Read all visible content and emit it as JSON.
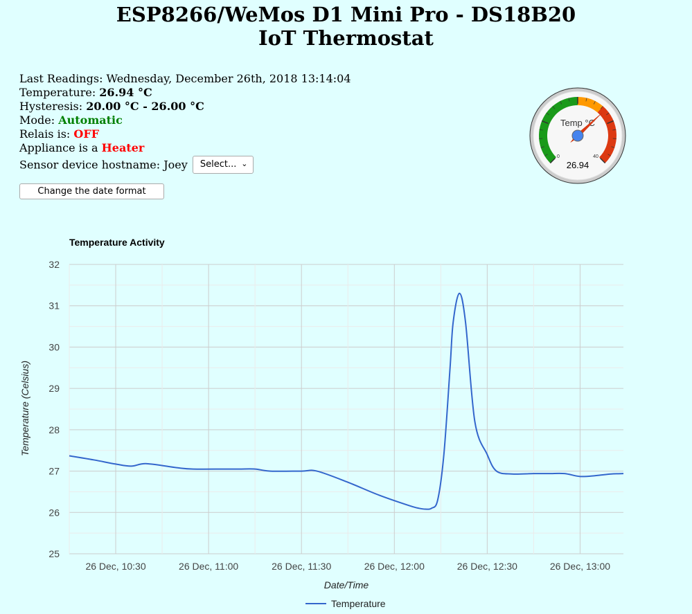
{
  "header": {
    "title_line1": "ESP8266/WeMos D1 Mini Pro - DS18B20",
    "title_line2": "IoT Thermostat"
  },
  "readings": {
    "last_label": "Last Readings: ",
    "last_value": "Wednesday, December 26th, 2018 13:14:04",
    "temp_label": "Temperature: ",
    "temp_value": "26.94 °C",
    "hyst_label": "Hysteresis: ",
    "hyst_value": "20.00 °C - 26.00 °C",
    "mode_label": "Mode: ",
    "mode_value": "Automatic",
    "relais_label": "Relais is: ",
    "relais_value": "OFF",
    "appliance_label": "Appliance is a ",
    "appliance_value": "Heater",
    "hostname_label": "Sensor device hostname: ",
    "hostname_value": "Joey",
    "select_value": "Select..."
  },
  "buttons": {
    "date_format": "Change the date format"
  },
  "gauge": {
    "label": "Temp °C",
    "value": 26.94,
    "value_text": "26.94",
    "min": 0,
    "max": 40,
    "min_label": "0",
    "max_label": "40",
    "bands": [
      {
        "from": 0,
        "to": 20,
        "color": "#1a9a1a"
      },
      {
        "from": 20,
        "to": 26,
        "color": "#ff9900"
      },
      {
        "from": 26,
        "to": 40,
        "color": "#dc3912"
      }
    ]
  },
  "chart_data": {
    "type": "line",
    "title": "Temperature Activity",
    "xlabel": "Date/Time",
    "ylabel": "Temperature (Celsius)",
    "ylim": [
      25,
      32
    ],
    "yticks": [
      25,
      26,
      27,
      28,
      29,
      30,
      31,
      32
    ],
    "xlim": [
      "26 Dec, 10:15",
      "26 Dec, 13:14"
    ],
    "xticks": [
      "26 Dec, 10:30",
      "26 Dec, 11:00",
      "26 Dec, 11:30",
      "26 Dec, 12:00",
      "26 Dec, 12:30",
      "26 Dec, 13:00"
    ],
    "grid": true,
    "legend_position": "bottom",
    "series": [
      {
        "name": "Temperature",
        "color": "#3366cc",
        "x": [
          "26 Dec, 10:15",
          "26 Dec, 10:23",
          "26 Dec, 10:30",
          "26 Dec, 10:35",
          "26 Dec, 10:40",
          "26 Dec, 10:50",
          "26 Dec, 10:55",
          "26 Dec, 11:05",
          "26 Dec, 11:10",
          "26 Dec, 11:15",
          "26 Dec, 11:20",
          "26 Dec, 11:30",
          "26 Dec, 11:35",
          "26 Dec, 11:45",
          "26 Dec, 11:55",
          "26 Dec, 12:05",
          "26 Dec, 12:08",
          "26 Dec, 12:10",
          "26 Dec, 12:12",
          "26 Dec, 12:14",
          "26 Dec, 12:16",
          "26 Dec, 12:18",
          "26 Dec, 12:19",
          "26 Dec, 12:21",
          "26 Dec, 12:23",
          "26 Dec, 12:26",
          "26 Dec, 12:30",
          "26 Dec, 12:33",
          "26 Dec, 12:38",
          "26 Dec, 12:45",
          "26 Dec, 12:50",
          "26 Dec, 12:55",
          "26 Dec, 13:00",
          "26 Dec, 13:05",
          "26 Dec, 13:10",
          "26 Dec, 13:14"
        ],
        "values": [
          27.37,
          27.27,
          27.17,
          27.12,
          27.18,
          27.08,
          27.05,
          27.05,
          27.05,
          27.05,
          27.0,
          27.0,
          27.0,
          26.73,
          26.42,
          26.16,
          26.1,
          26.08,
          26.1,
          26.3,
          27.4,
          29.5,
          30.6,
          31.3,
          30.6,
          28.2,
          27.4,
          27.0,
          26.93,
          26.94,
          26.94,
          26.94,
          26.87,
          26.89,
          26.93,
          26.94
        ]
      }
    ]
  }
}
